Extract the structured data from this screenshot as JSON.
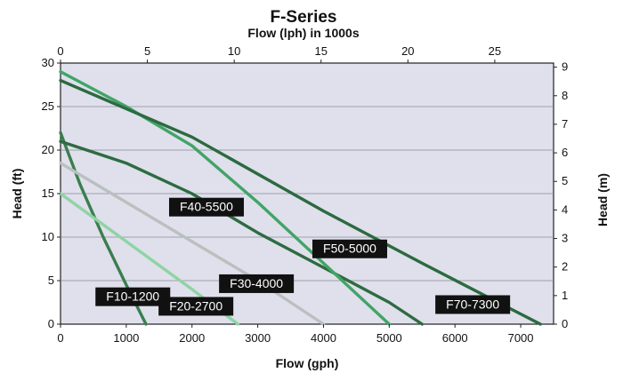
{
  "chart_data": {
    "type": "line",
    "title": "F-Series",
    "subtitle": "Flow (lph)  in 1000s",
    "xlabel": "Flow (gph)",
    "ylabel": "Head (ft)",
    "y2label": "Head (m)",
    "xlim": [
      0,
      7500
    ],
    "ylim": [
      0,
      30
    ],
    "x_ticks": [
      0,
      1000,
      2000,
      3000,
      4000,
      5000,
      6000,
      7000
    ],
    "y_ticks": [
      0,
      5,
      10,
      15,
      20,
      25,
      30
    ],
    "x2_ticks": [
      0,
      5,
      10,
      15,
      20,
      25
    ],
    "y2_ticks": [
      0,
      1,
      2,
      3,
      4,
      5,
      6,
      7,
      8,
      9
    ],
    "grid": "horizontal",
    "background": "#dfe0ec",
    "series": [
      {
        "name": "F10-1200",
        "color": "#3b7e4f",
        "x": [
          0,
          300,
          650,
          1000,
          1300
        ],
        "y": [
          22,
          16,
          10,
          4.5,
          0
        ]
      },
      {
        "name": "F20-2700",
        "color": "#8fd3a5",
        "x": [
          0,
          1000,
          2000,
          2700
        ],
        "y": [
          15,
          9.5,
          4,
          0
        ]
      },
      {
        "name": "F30-4000",
        "color": "#b9c0bf",
        "x": [
          0,
          1000,
          2000,
          3000,
          4000
        ],
        "y": [
          18.5,
          14,
          9.5,
          5,
          0
        ]
      },
      {
        "name": "F40-5500",
        "color": "#2e6b41",
        "x": [
          0,
          1000,
          2000,
          3000,
          4000,
          5000,
          5500
        ],
        "y": [
          21,
          18.5,
          15,
          10.5,
          6.5,
          2.5,
          0
        ]
      },
      {
        "name": "F50-5000",
        "color": "#41a466",
        "x": [
          0,
          1000,
          2000,
          3000,
          4000,
          5000
        ],
        "y": [
          29,
          25,
          20.5,
          14,
          7,
          0
        ]
      },
      {
        "name": "F70-7300",
        "color": "#2c6a40",
        "x": [
          0,
          2000,
          4000,
          5500,
          7300
        ],
        "y": [
          28,
          21.5,
          13,
          7,
          0
        ]
      }
    ],
    "annotations": [
      {
        "text": "F10-1200",
        "x": 1100,
        "y": 3.2
      },
      {
        "text": "F20-2700",
        "x": 2060,
        "y": 2.1
      },
      {
        "text": "F30-4000",
        "x": 2980,
        "y": 4.7
      },
      {
        "text": "F40-5500",
        "x": 2220,
        "y": 13.5
      },
      {
        "text": "F50-5000",
        "x": 4400,
        "y": 8.7
      },
      {
        "text": "F70-7300",
        "x": 6270,
        "y": 2.3
      }
    ]
  }
}
